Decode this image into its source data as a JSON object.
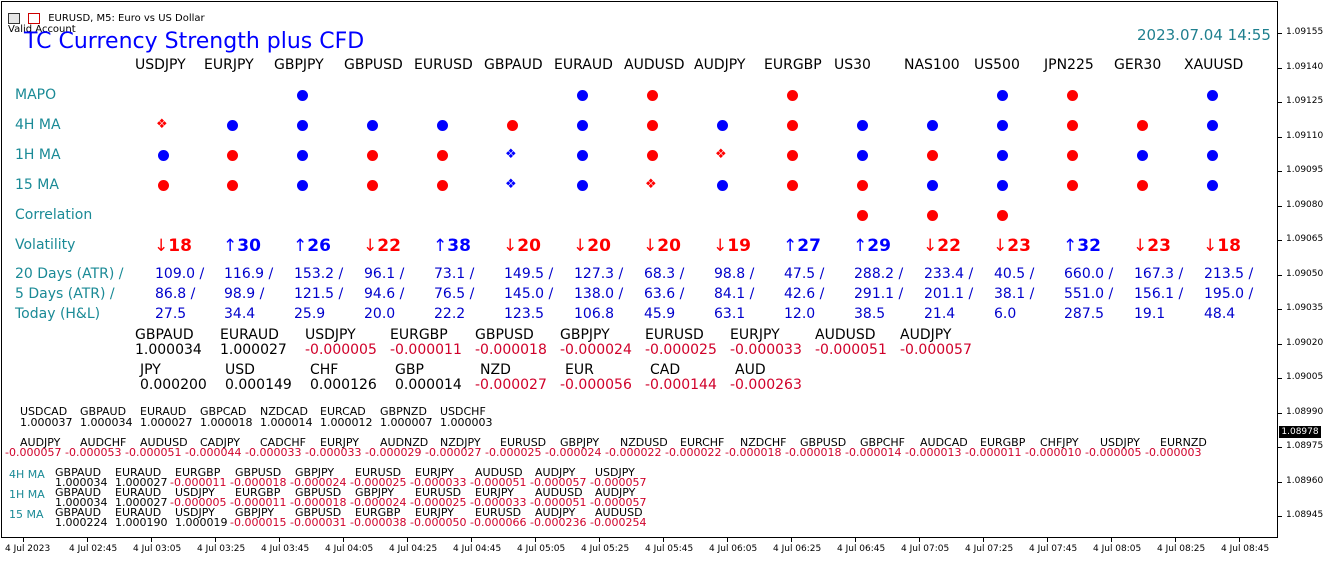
{
  "window": {
    "title": "EURUSD, M5:  Euro vs US Dollar",
    "account": "Valid Account"
  },
  "indicator": {
    "title": "TC Currency Strength plus CFD",
    "datetime": "2023.07.04 14:55"
  },
  "symbols": [
    "USDJPY",
    "EURJPY",
    "GBPJPY",
    "GBPUSD",
    "EURUSD",
    "GBPAUD",
    "EURAUD",
    "AUDUSD",
    "AUDJPY",
    "EURGBP",
    "US30",
    "NAS100",
    "US500",
    "JPN225",
    "GER30",
    "XAUUSD"
  ],
  "row_labels": {
    "mapo": "MAPO",
    "h4": "4H MA",
    "h1": "1H MA",
    "m15": "15 MA",
    "corr": "Correlation",
    "vol": "Volatility",
    "atr20": "20 Days (ATR) /",
    "atr5": "5 Days (ATR) /",
    "today": "Today (H&L)"
  },
  "signals": {
    "mapo": [
      "",
      "",
      "blue",
      "",
      "",
      "",
      "blue",
      "red",
      "",
      "red",
      "",
      "",
      "blue",
      "red",
      "",
      "blue"
    ],
    "h4": [
      "red-diamond",
      "blue",
      "blue",
      "blue",
      "blue",
      "red",
      "blue",
      "red",
      "blue",
      "red",
      "blue",
      "blue",
      "blue",
      "red",
      "red",
      "blue"
    ],
    "h1": [
      "blue",
      "red",
      "blue",
      "red",
      "red",
      "blue-diamond",
      "blue",
      "red",
      "red-diamond",
      "red",
      "blue",
      "red",
      "blue",
      "red",
      "blue",
      "blue"
    ],
    "m15": [
      "red",
      "red",
      "blue",
      "red",
      "red",
      "blue-diamond",
      "blue",
      "red-diamond",
      "blue",
      "red",
      "red",
      "blue",
      "blue",
      "red",
      "red",
      "blue"
    ],
    "corr": [
      "",
      "",
      "",
      "",
      "",
      "",
      "",
      "",
      "",
      "",
      "red",
      "red",
      "red",
      "",
      "",
      ""
    ]
  },
  "volatility": [
    {
      "dir": "down",
      "val": "18"
    },
    {
      "dir": "up",
      "val": "30"
    },
    {
      "dir": "up",
      "val": "26"
    },
    {
      "dir": "down",
      "val": "22"
    },
    {
      "dir": "up",
      "val": "38"
    },
    {
      "dir": "down",
      "val": "20"
    },
    {
      "dir": "down",
      "val": "20"
    },
    {
      "dir": "down",
      "val": "20"
    },
    {
      "dir": "down",
      "val": "19"
    },
    {
      "dir": "up",
      "val": "27"
    },
    {
      "dir": "up",
      "val": "29"
    },
    {
      "dir": "down",
      "val": "22"
    },
    {
      "dir": "down",
      "val": "23"
    },
    {
      "dir": "up",
      "val": "32"
    },
    {
      "dir": "down",
      "val": "23"
    },
    {
      "dir": "down",
      "val": "18"
    }
  ],
  "atr20": [
    "109.0 /",
    "116.9 /",
    "153.2 /",
    "96.1 /",
    "73.1 /",
    "149.5 /",
    "127.3 /",
    "68.3 /",
    "98.8 /",
    "47.5 /",
    "288.2 /",
    "233.4 /",
    "40.5 /",
    "660.0 /",
    "167.3 /",
    "213.5 /"
  ],
  "atr5": [
    "86.8 /",
    "98.9 /",
    "121.5 /",
    "94.6 /",
    "76.5 /",
    "145.0 /",
    "138.0 /",
    "63.6 /",
    "84.1 /",
    "42.6 /",
    "291.1 /",
    "201.1 /",
    "38.1 /",
    "551.0 /",
    "156.1 /",
    "195.0 /"
  ],
  "today": [
    "27.5",
    "34.4",
    "25.9",
    "20.0",
    "22.2",
    "123.5",
    "106.8",
    "45.9",
    "63.1",
    "12.0",
    "38.5",
    "21.4",
    "6.0",
    "287.5",
    "19.1",
    "48.4"
  ],
  "pair_strength": [
    {
      "sym": "GBPAUD",
      "val": "1.000034"
    },
    {
      "sym": "EURAUD",
      "val": "1.000027"
    },
    {
      "sym": "USDJPY",
      "val": "-0.000005"
    },
    {
      "sym": "EURGBP",
      "val": "-0.000011"
    },
    {
      "sym": "GBPUSD",
      "val": "-0.000018"
    },
    {
      "sym": "GBPJPY",
      "val": "-0.000024"
    },
    {
      "sym": "EURUSD",
      "val": "-0.000025"
    },
    {
      "sym": "EURJPY",
      "val": "-0.000033"
    },
    {
      "sym": "AUDUSD",
      "val": "-0.000051"
    },
    {
      "sym": "AUDJPY",
      "val": "-0.000057"
    }
  ],
  "currency_strength": [
    {
      "sym": "JPY",
      "val": "0.000200"
    },
    {
      "sym": "USD",
      "val": "0.000149"
    },
    {
      "sym": "CHF",
      "val": "0.000126"
    },
    {
      "sym": "GBP",
      "val": "0.000014"
    },
    {
      "sym": "NZD",
      "val": "-0.000027"
    },
    {
      "sym": "EUR",
      "val": "-0.000056"
    },
    {
      "sym": "CAD",
      "val": "-0.000144"
    },
    {
      "sym": "AUD",
      "val": "-0.000263"
    }
  ],
  "small_pos": [
    {
      "sym": "USDCAD",
      "val": "1.000037"
    },
    {
      "sym": "GBPAUD",
      "val": "1.000034"
    },
    {
      "sym": "EURAUD",
      "val": "1.000027"
    },
    {
      "sym": "GBPCAD",
      "val": "1.000018"
    },
    {
      "sym": "NZDCAD",
      "val": "1.000014"
    },
    {
      "sym": "EURCAD",
      "val": "1.000012"
    },
    {
      "sym": "GBPNZD",
      "val": "1.000007"
    },
    {
      "sym": "USDCHF",
      "val": "1.000003"
    }
  ],
  "small_neg": [
    {
      "sym": "AUDJPY",
      "val": "-0.000057"
    },
    {
      "sym": "AUDCHF",
      "val": "-0.000053"
    },
    {
      "sym": "AUDUSD",
      "val": "-0.000051"
    },
    {
      "sym": "CADJPY",
      "val": "-0.000044"
    },
    {
      "sym": "CADCHF",
      "val": "-0.000033"
    },
    {
      "sym": "EURJPY",
      "val": "-0.000033"
    },
    {
      "sym": "AUDNZD",
      "val": "-0.000029"
    },
    {
      "sym": "NZDJPY",
      "val": "-0.000027"
    },
    {
      "sym": "EURUSD",
      "val": "-0.000025"
    },
    {
      "sym": "GBPJPY",
      "val": "-0.000024"
    },
    {
      "sym": "NZDUSD",
      "val": "-0.000022"
    },
    {
      "sym": "EURCHF",
      "val": "-0.000022"
    },
    {
      "sym": "NZDCHF",
      "val": "-0.000018"
    },
    {
      "sym": "GBPUSD",
      "val": "-0.000018"
    },
    {
      "sym": "GBPCHF",
      "val": "-0.000014"
    },
    {
      "sym": "AUDCAD",
      "val": "-0.000013"
    },
    {
      "sym": "EURGBP",
      "val": "-0.000011"
    },
    {
      "sym": "CHFJPY",
      "val": "-0.000010"
    },
    {
      "sym": "USDJPY",
      "val": "-0.000005"
    },
    {
      "sym": "EURNZD",
      "val": "-0.000003"
    }
  ],
  "tf_rows": [
    {
      "label": "4H MA",
      "items": [
        {
          "sym": "GBPAUD",
          "val": "1.000034"
        },
        {
          "sym": "EURAUD",
          "val": "1.000027"
        },
        {
          "sym": "EURGBP",
          "val": "-0.000011"
        },
        {
          "sym": "GBPUSD",
          "val": "-0.000018"
        },
        {
          "sym": "GBPJPY",
          "val": "-0.000024"
        },
        {
          "sym": "EURUSD",
          "val": "-0.000025"
        },
        {
          "sym": "EURJPY",
          "val": "-0.000033"
        },
        {
          "sym": "AUDUSD",
          "val": "-0.000051"
        },
        {
          "sym": "AUDJPY",
          "val": "-0.000057"
        },
        {
          "sym": "USDJPY",
          "val": "-0.000057"
        }
      ]
    },
    {
      "label": "1H MA",
      "items": [
        {
          "sym": "GBPAUD",
          "val": "1.000034"
        },
        {
          "sym": "EURAUD",
          "val": "1.000027"
        },
        {
          "sym": "USDJPY",
          "val": "-0.000005"
        },
        {
          "sym": "EURGBP",
          "val": "-0.000011"
        },
        {
          "sym": "GBPUSD",
          "val": "-0.000018"
        },
        {
          "sym": "GBPJPY",
          "val": "-0.000024"
        },
        {
          "sym": "EURUSD",
          "val": "-0.000025"
        },
        {
          "sym": "EURJPY",
          "val": "-0.000033"
        },
        {
          "sym": "AUDUSD",
          "val": "-0.000051"
        },
        {
          "sym": "AUDJPY",
          "val": "-0.000057"
        }
      ]
    },
    {
      "label": "15 MA",
      "items": [
        {
          "sym": "GBPAUD",
          "val": "1.000224"
        },
        {
          "sym": "EURAUD",
          "val": "1.000190"
        },
        {
          "sym": "USDJPY",
          "val": "1.000019"
        },
        {
          "sym": "GBPJPY",
          "val": "-0.000015"
        },
        {
          "sym": "GBPUSD",
          "val": "-0.000031"
        },
        {
          "sym": "EURGBP",
          "val": "-0.000038"
        },
        {
          "sym": "EURJPY",
          "val": "-0.000050"
        },
        {
          "sym": "EURUSD",
          "val": "-0.000066"
        },
        {
          "sym": "AUDJPY",
          "val": "-0.000236"
        },
        {
          "sym": "AUDUSD",
          "val": "-0.000254"
        }
      ]
    }
  ],
  "price_scale": [
    "1.09155",
    "1.09140",
    "1.09125",
    "1.09110",
    "1.09095",
    "1.09080",
    "1.09065",
    "1.09050",
    "1.09035",
    "1.09020",
    "1.09005",
    "1.08990",
    "1.08975",
    "1.08960",
    "1.08945"
  ],
  "current_price": "1.08978",
  "time_scale": [
    "4 Jul 2023",
    "4 Jul 02:45",
    "4 Jul 03:05",
    "4 Jul 03:25",
    "4 Jul 03:45",
    "4 Jul 04:05",
    "4 Jul 04:25",
    "4 Jul 04:45",
    "4 Jul 05:05",
    "4 Jul 05:25",
    "4 Jul 05:45",
    "4 Jul 06:05",
    "4 Jul 06:25",
    "4 Jul 06:45",
    "4 Jul 07:05",
    "4 Jul 07:25",
    "4 Jul 07:45",
    "4 Jul 08:05",
    "4 Jul 08:25",
    "4 Jul 08:45"
  ],
  "colors": {
    "blue": "#0000ff",
    "red": "#ff0000",
    "teal": "#1a8a96",
    "negative": "#d0002a"
  }
}
